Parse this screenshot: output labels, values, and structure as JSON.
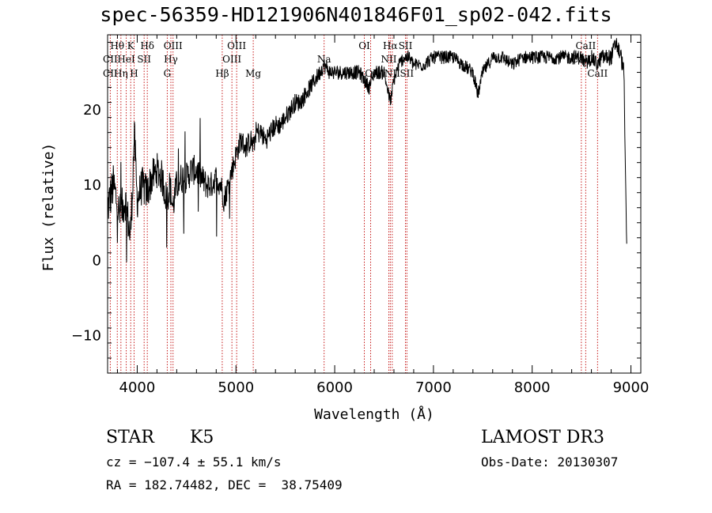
{
  "chart_data": {
    "type": "line",
    "title": "spec-56359-HD121906N401846F01_sp02-042.fits",
    "xlabel": "Wavelength (Å)",
    "ylabel": "Flux (relative)",
    "xlim": [
      3700,
      9100
    ],
    "ylim": [
      -15,
      30
    ],
    "x_ticks": [
      4000,
      5000,
      6000,
      7000,
      8000,
      9000
    ],
    "y_ticks": [
      -10,
      0,
      10,
      20
    ],
    "grid": false,
    "series": [
      {
        "name": "flux",
        "anchors": [
          [
            3700,
            7
          ],
          [
            3760,
            10
          ],
          [
            3820,
            6
          ],
          [
            3880,
            8
          ],
          [
            3930,
            3
          ],
          [
            3950,
            9
          ],
          [
            3970,
            17
          ],
          [
            4000,
            8
          ],
          [
            4050,
            10
          ],
          [
            4100,
            9
          ],
          [
            4150,
            11
          ],
          [
            4200,
            12
          ],
          [
            4250,
            11
          ],
          [
            4300,
            8
          ],
          [
            4330,
            10
          ],
          [
            4360,
            7
          ],
          [
            4400,
            10
          ],
          [
            4450,
            11
          ],
          [
            4500,
            11
          ],
          [
            4550,
            12
          ],
          [
            4600,
            12
          ],
          [
            4650,
            11
          ],
          [
            4700,
            10
          ],
          [
            4750,
            10
          ],
          [
            4800,
            11
          ],
          [
            4850,
            10
          ],
          [
            4880,
            8
          ],
          [
            4920,
            10
          ],
          [
            4960,
            12
          ],
          [
            5000,
            14
          ],
          [
            5050,
            16
          ],
          [
            5100,
            15
          ],
          [
            5150,
            16
          ],
          [
            5180,
            15
          ],
          [
            5200,
            17
          ],
          [
            5250,
            17
          ],
          [
            5300,
            16
          ],
          [
            5350,
            17
          ],
          [
            5400,
            18
          ],
          [
            5450,
            18
          ],
          [
            5500,
            19
          ],
          [
            5550,
            20
          ],
          [
            5600,
            21
          ],
          [
            5650,
            21
          ],
          [
            5700,
            22
          ],
          [
            5750,
            23
          ],
          [
            5800,
            24
          ],
          [
            5850,
            25
          ],
          [
            5890,
            26
          ],
          [
            5950,
            25
          ],
          [
            6000,
            25
          ],
          [
            6050,
            25
          ],
          [
            6100,
            25
          ],
          [
            6150,
            25
          ],
          [
            6200,
            25
          ],
          [
            6250,
            25
          ],
          [
            6300,
            24
          ],
          [
            6350,
            23
          ],
          [
            6400,
            25
          ],
          [
            6450,
            25
          ],
          [
            6500,
            25
          ],
          [
            6563,
            21
          ],
          [
            6600,
            24
          ],
          [
            6650,
            26
          ],
          [
            6700,
            27
          ],
          [
            6750,
            27
          ],
          [
            6800,
            26
          ],
          [
            6900,
            26
          ],
          [
            7000,
            27
          ],
          [
            7100,
            27
          ],
          [
            7200,
            27
          ],
          [
            7300,
            26
          ],
          [
            7400,
            25
          ],
          [
            7450,
            22
          ],
          [
            7500,
            25
          ],
          [
            7600,
            27
          ],
          [
            7700,
            27
          ],
          [
            7800,
            26
          ],
          [
            7900,
            27
          ],
          [
            8000,
            27
          ],
          [
            8100,
            27
          ],
          [
            8200,
            27
          ],
          [
            8300,
            27
          ],
          [
            8400,
            27
          ],
          [
            8500,
            27
          ],
          [
            8542,
            26
          ],
          [
            8600,
            27
          ],
          [
            8662,
            26
          ],
          [
            8700,
            27
          ],
          [
            8800,
            27
          ],
          [
            8850,
            29
          ],
          [
            8900,
            27
          ],
          [
            8930,
            25
          ],
          [
            8950,
            7
          ],
          [
            8960,
            0
          ]
        ],
        "noise": [
          [
            3700,
            3.0
          ],
          [
            4000,
            2.6
          ],
          [
            4300,
            2.3
          ],
          [
            4700,
            1.9
          ],
          [
            5000,
            1.6
          ],
          [
            5500,
            1.3
          ],
          [
            6000,
            1.0
          ],
          [
            7000,
            0.9
          ],
          [
            8000,
            0.9
          ],
          [
            8600,
            1.0
          ],
          [
            8900,
            1.2
          ],
          [
            8960,
            0.8
          ]
        ]
      }
    ],
    "line_labels": [
      {
        "label": "Hθ",
        "wavelength": 3798,
        "row": 1
      },
      {
        "label": "K",
        "wavelength": 3934,
        "row": 1
      },
      {
        "label": "Hδ",
        "wavelength": 4102,
        "row": 1
      },
      {
        "label": "OIII",
        "wavelength": 4363,
        "row": 1
      },
      {
        "label": "OIII",
        "wavelength": 5007,
        "row": 1
      },
      {
        "label": "Na",
        "wavelength": 5893,
        "row": 2
      },
      {
        "label": "OI",
        "wavelength": 6300,
        "row": 1
      },
      {
        "label": "Hα",
        "wavelength": 6563,
        "row": 1
      },
      {
        "label": "SII",
        "wavelength": 6717,
        "row": 1
      },
      {
        "label": "CaII",
        "wavelength": 8542,
        "row": 1
      },
      {
        "label": "CII",
        "wavelength": 3727,
        "row": 2
      },
      {
        "label": "HeI",
        "wavelength": 3889,
        "row": 2
      },
      {
        "label": "SII",
        "wavelength": 4070,
        "row": 2
      },
      {
        "label": "Hγ",
        "wavelength": 4341,
        "row": 2
      },
      {
        "label": "OIII",
        "wavelength": 4959,
        "row": 2
      },
      {
        "label": "NII",
        "wavelength": 6548,
        "row": 2
      },
      {
        "label": "CaII",
        "wavelength": 8498,
        "row": 2
      },
      {
        "label": "CII",
        "wavelength": 3727,
        "row": 3
      },
      {
        "label": "Hη",
        "wavelength": 3835,
        "row": 3
      },
      {
        "label": "H",
        "wavelength": 3968,
        "row": 3
      },
      {
        "label": "G",
        "wavelength": 4304,
        "row": 3
      },
      {
        "label": "Hβ",
        "wavelength": 4861,
        "row": 3
      },
      {
        "label": "Mg",
        "wavelength": 5175,
        "row": 3
      },
      {
        "label": "OI",
        "wavelength": 6364,
        "row": 3
      },
      {
        "label": "NII",
        "wavelength": 6583,
        "row": 3
      },
      {
        "label": "SII",
        "wavelength": 6731,
        "row": 3
      },
      {
        "label": "CaII",
        "wavelength": 8662,
        "row": 3
      }
    ],
    "marker_lines": [
      3727,
      3798,
      3835,
      3889,
      3934,
      3968,
      4070,
      4102,
      4304,
      4341,
      4363,
      4861,
      4959,
      5007,
      5175,
      5893,
      6300,
      6364,
      6548,
      6563,
      6583,
      6717,
      6731,
      8498,
      8542,
      8662
    ]
  },
  "footer": {
    "object_class": "STAR",
    "subclass": "K5",
    "survey": "LAMOST DR3",
    "redshift_text": "cz = −107.4 ± 55.1 km/s",
    "obs_date": "Obs-Date: 20130307",
    "coords_text": "RA = 182.74482, DEC =  38.75409"
  },
  "colors": {
    "spectrum": "#000000",
    "marker": "#c00000",
    "axis": "#000000",
    "background": "#ffffff"
  }
}
